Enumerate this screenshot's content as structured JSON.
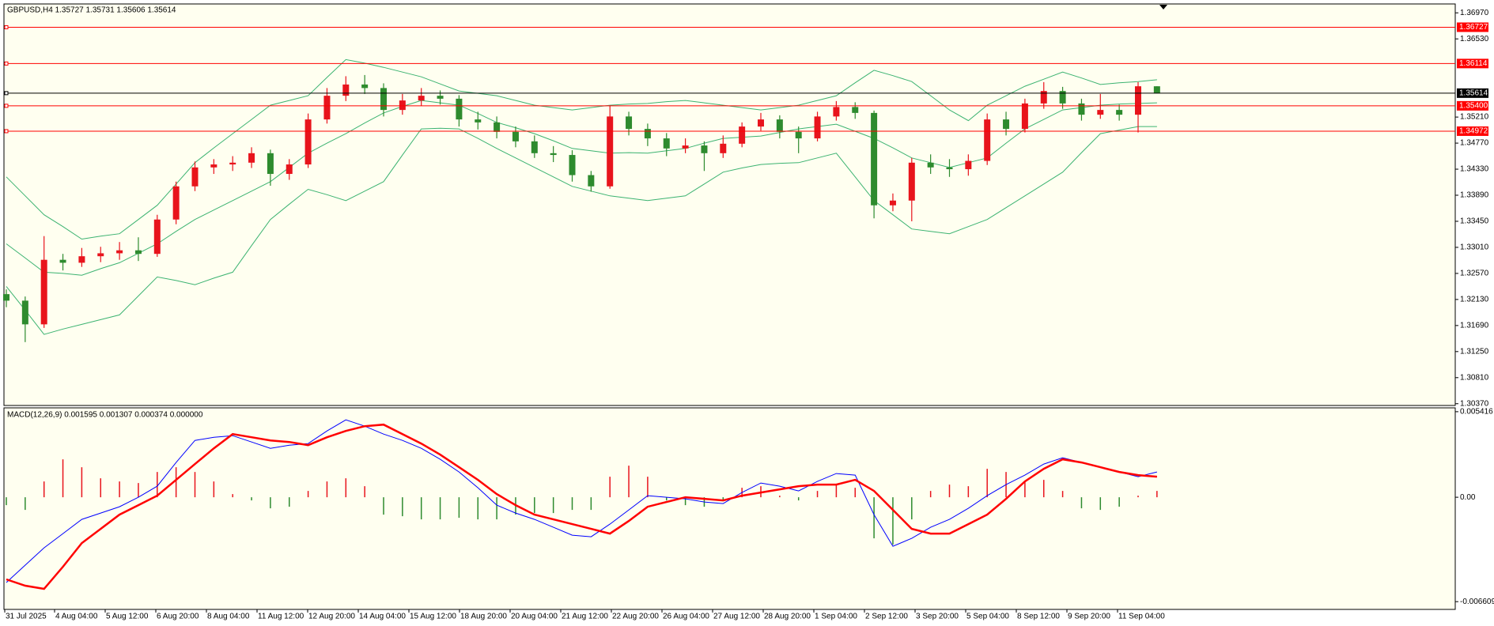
{
  "chart_data": [
    {
      "type": "candlestick",
      "title": "GBPUSD,H4  1.35727 1.35731 1.35606 1.35614",
      "up_color": "#e8141c",
      "down_color": "#2e8b2e",
      "open": [
        1.3222,
        1.3211,
        1.3171,
        1.328,
        1.3275,
        1.3286,
        1.3291,
        1.3296,
        1.329,
        1.3348,
        1.3404,
        1.3436,
        1.3441,
        1.3444,
        1.346,
        1.3425,
        1.3441,
        1.3517,
        1.3557,
        1.3576,
        1.357,
        1.3533,
        1.3549,
        1.3557,
        1.3552,
        1.3517,
        1.3512,
        1.3496,
        1.348,
        1.346,
        1.3457,
        1.3423,
        1.3404,
        1.3522,
        1.3501,
        1.3485,
        1.3468,
        1.3473,
        1.346,
        1.3476,
        1.3505,
        1.3517,
        1.3496,
        1.3485,
        1.3522,
        1.3538,
        1.3528,
        1.3372,
        1.338,
        1.3444,
        1.3436,
        1.3433,
        1.3447,
        1.3517,
        1.3501,
        1.3544,
        1.3565,
        1.3544,
        1.3525,
        1.3533,
        1.3525,
        1.3573
      ],
      "high": [
        1.323,
        1.3218,
        1.332,
        1.329,
        1.33,
        1.3302,
        1.331,
        1.3318,
        1.3356,
        1.3412,
        1.3446,
        1.345,
        1.3455,
        1.347,
        1.3466,
        1.345,
        1.3527,
        1.357,
        1.359,
        1.3592,
        1.3578,
        1.356,
        1.357,
        1.3566,
        1.3558,
        1.353,
        1.3522,
        1.3505,
        1.349,
        1.3472,
        1.3465,
        1.343,
        1.354,
        1.353,
        1.351,
        1.3494,
        1.3485,
        1.348,
        1.349,
        1.3512,
        1.3528,
        1.3524,
        1.3505,
        1.353,
        1.3548,
        1.3546,
        1.3532,
        1.3392,
        1.3452,
        1.3458,
        1.345,
        1.3458,
        1.3527,
        1.353,
        1.3552,
        1.358,
        1.3572,
        1.3552,
        1.356,
        1.3542,
        1.358,
        1.3573
      ],
      "low": [
        1.32,
        1.3141,
        1.3165,
        1.3262,
        1.3268,
        1.3276,
        1.328,
        1.3278,
        1.3285,
        1.334,
        1.3396,
        1.3425,
        1.343,
        1.3435,
        1.3405,
        1.3415,
        1.3435,
        1.351,
        1.3548,
        1.356,
        1.3522,
        1.3525,
        1.354,
        1.3542,
        1.3505,
        1.35,
        1.3485,
        1.347,
        1.3452,
        1.3445,
        1.3412,
        1.3395,
        1.34,
        1.349,
        1.3472,
        1.3455,
        1.346,
        1.343,
        1.3452,
        1.347,
        1.3498,
        1.3485,
        1.346,
        1.348,
        1.3515,
        1.3518,
        1.335,
        1.3362,
        1.3345,
        1.3425,
        1.342,
        1.3422,
        1.344,
        1.349,
        1.3495,
        1.3535,
        1.3535,
        1.3515,
        1.3518,
        1.3515,
        1.3495,
        1.3561
      ],
      "close": [
        1.3211,
        1.3171,
        1.328,
        1.3275,
        1.3286,
        1.3291,
        1.3296,
        1.329,
        1.3348,
        1.3404,
        1.3436,
        1.3441,
        1.3444,
        1.346,
        1.3425,
        1.3441,
        1.3517,
        1.3557,
        1.3576,
        1.357,
        1.3533,
        1.3549,
        1.3557,
        1.3552,
        1.3517,
        1.3512,
        1.3496,
        1.348,
        1.346,
        1.3457,
        1.3423,
        1.3404,
        1.3522,
        1.3501,
        1.3485,
        1.3468,
        1.3473,
        1.346,
        1.3476,
        1.3505,
        1.3517,
        1.3496,
        1.3485,
        1.3522,
        1.3538,
        1.3528,
        1.3372,
        1.338,
        1.3444,
        1.3436,
        1.3433,
        1.3447,
        1.3517,
        1.3501,
        1.3544,
        1.3565,
        1.3544,
        1.3525,
        1.3533,
        1.3525,
        1.3573,
        1.3561
      ],
      "band_color": "#3cb371",
      "bands": {
        "upper": [
          1.342,
          1.3388,
          1.3356,
          1.3336,
          1.3315,
          1.332,
          1.3324,
          1.3348,
          1.3372,
          1.3408,
          1.3444,
          1.3469,
          1.3493,
          1.3517,
          1.3541,
          1.3549,
          1.3557,
          1.3588,
          1.3618,
          1.3612,
          1.3605,
          1.3597,
          1.3589,
          1.3577,
          1.3565,
          1.3561,
          1.3557,
          1.3549,
          1.3541,
          1.3537,
          1.3533,
          1.3537,
          1.3541,
          1.3543,
          1.3544,
          1.3547,
          1.3549,
          1.3545,
          1.3541,
          1.3537,
          1.3533,
          1.3537,
          1.3541,
          1.3549,
          1.3557,
          1.3579,
          1.36,
          1.3591,
          1.3581,
          1.3557,
          1.3533,
          1.3515,
          1.3541,
          1.3557,
          1.3573,
          1.3585,
          1.3597,
          1.3587,
          1.3576,
          1.3579,
          1.3581,
          1.3584
        ],
        "middle": [
          1.3307,
          1.3283,
          1.3259,
          1.3257,
          1.3254,
          1.3265,
          1.3275,
          1.3291,
          1.3307,
          1.3328,
          1.3348,
          1.3364,
          1.338,
          1.3396,
          1.3412,
          1.3436,
          1.346,
          1.3477,
          1.3493,
          1.3511,
          1.3528,
          1.3539,
          1.3549,
          1.3545,
          1.3541,
          1.3527,
          1.3512,
          1.3503,
          1.3493,
          1.3481,
          1.3468,
          1.3464,
          1.346,
          1.3461,
          1.346,
          1.3464,
          1.3468,
          1.3477,
          1.3485,
          1.3487,
          1.3489,
          1.3495,
          1.3501,
          1.3505,
          1.3509,
          1.3497,
          1.3485,
          1.3469,
          1.3452,
          1.3444,
          1.3436,
          1.3444,
          1.3452,
          1.3477,
          1.3501,
          1.3517,
          1.3533,
          1.3537,
          1.3541,
          1.3543,
          1.3544,
          1.3545
        ],
        "lower": [
          1.3235,
          1.3195,
          1.3154,
          1.3163,
          1.3171,
          1.3179,
          1.3187,
          1.3219,
          1.3251,
          1.3245,
          1.3238,
          1.3249,
          1.3259,
          1.3304,
          1.3348,
          1.3374,
          1.3399,
          1.339,
          1.338,
          1.3396,
          1.3412,
          1.3457,
          1.3501,
          1.3502,
          1.3501,
          1.3485,
          1.3468,
          1.3452,
          1.3436,
          1.342,
          1.3404,
          1.3396,
          1.3388,
          1.3384,
          1.338,
          1.3384,
          1.3388,
          1.3408,
          1.3428,
          1.3435,
          1.3441,
          1.3443,
          1.3444,
          1.3452,
          1.346,
          1.342,
          1.338,
          1.3356,
          1.3332,
          1.3328,
          1.3324,
          1.3336,
          1.3348,
          1.3368,
          1.3388,
          1.3408,
          1.3428,
          1.3461,
          1.3493,
          1.3499,
          1.3505,
          1.3505
        ]
      },
      "ylim": [
        1.3034,
        1.3712
      ],
      "yticks": [
        {
          "value": 1.3697,
          "label": "1.36970"
        },
        {
          "value": 1.3653,
          "label": "1.36530"
        },
        {
          "value": 1.3521,
          "label": "1.35210"
        },
        {
          "value": 1.3477,
          "label": "1.34770"
        },
        {
          "value": 1.3433,
          "label": "1.34330"
        },
        {
          "value": 1.3389,
          "label": "1.33890"
        },
        {
          "value": 1.3345,
          "label": "1.33450"
        },
        {
          "value": 1.3301,
          "label": "1.33010"
        },
        {
          "value": 1.3257,
          "label": "1.32570"
        },
        {
          "value": 1.3213,
          "label": "1.32130"
        },
        {
          "value": 1.3169,
          "label": "1.31690"
        },
        {
          "value": 1.3125,
          "label": "1.31250"
        },
        {
          "value": 1.3081,
          "label": "1.30810"
        },
        {
          "value": 1.3037,
          "label": "1.30370"
        }
      ],
      "price_line_color": "#ff0000",
      "price_lines": [
        {
          "value": 1.36727,
          "label": "1.36727"
        },
        {
          "value": 1.36114,
          "label": "1.36114"
        },
        {
          "value": 1.354,
          "label": "1.35400"
        },
        {
          "value": 1.34972,
          "label": "1.34972"
        }
      ],
      "current_price_color": "#000000",
      "current_price": {
        "value": 1.35614,
        "label": "1.35614"
      }
    },
    {
      "type": "macd",
      "title": "MACD(12,26,9) 0.001595 0.001307 0.000374 0.000000",
      "hist_up_color": "#e8141c",
      "hist_down_color": "#2e8b2e",
      "macd_color": "#0000ff",
      "signal_color": "#ff0000",
      "histogram": [
        -0.0005,
        -0.0008,
        0.001,
        0.0024,
        0.0019,
        0.0012,
        0.001,
        0.0009,
        0.0016,
        0.0019,
        0.0016,
        0.001,
        0.0002,
        -0.0002,
        -0.0007,
        -0.0006,
        0.0004,
        0.001,
        0.0012,
        0.0007,
        -0.0011,
        -0.0012,
        -0.0014,
        -0.0014,
        -0.0013,
        -0.0014,
        -0.0014,
        -0.0011,
        -0.001,
        -0.001,
        -0.0008,
        -0.0008,
        0.0013,
        0.002,
        0.0013,
        -0.0002,
        -0.0005,
        -0.0006,
        -0.0002,
        0.0006,
        0.0007,
        0.0001,
        -0.0002,
        0.0004,
        0.0008,
        0.0006,
        -0.0026,
        -0.003,
        -0.0014,
        0.0004,
        0.0008,
        0.0007,
        0.0018,
        0.0016,
        0.001,
        0.0011,
        0.0004,
        -0.0007,
        -0.0008,
        -0.0006,
        0.0001,
        0.0004
      ],
      "macd": [
        -0.0054,
        -0.0043,
        -0.0032,
        -0.0023,
        -0.0014,
        -0.001,
        -0.0006,
        0.0,
        0.0007,
        0.0022,
        0.0036,
        0.0038,
        0.0039,
        0.0035,
        0.0031,
        0.0033,
        0.0034,
        0.0042,
        0.0049,
        0.0045,
        0.004,
        0.0036,
        0.0031,
        0.0024,
        0.0016,
        0.0006,
        -0.0005,
        -0.001,
        -0.0014,
        -0.0019,
        -0.0024,
        -0.0025,
        -0.0017,
        -0.0008,
        0.0001,
        0.0,
        -0.0001,
        -0.0003,
        -0.0004,
        0.0003,
        0.0009,
        0.0007,
        0.0004,
        0.001,
        0.0015,
        0.0014,
        -0.0011,
        -0.0031,
        -0.0026,
        -0.0019,
        -0.0014,
        -0.0007,
        0.0001,
        0.0008,
        0.0014,
        0.0021,
        0.0025,
        0.0022,
        0.0019,
        0.0016,
        0.0013,
        0.0016
      ],
      "signal": [
        -0.0052,
        -0.0056,
        -0.0058,
        -0.0044,
        -0.0029,
        -0.002,
        -0.0011,
        -0.0005,
        0.0001,
        0.0011,
        0.0021,
        0.0031,
        0.004,
        0.0038,
        0.0036,
        0.0035,
        0.0033,
        0.0038,
        0.0042,
        0.0045,
        0.0046,
        0.004,
        0.0034,
        0.0027,
        0.0019,
        0.0011,
        0.0002,
        -0.0005,
        -0.0011,
        -0.0014,
        -0.0017,
        -0.002,
        -0.0023,
        -0.0015,
        -0.0006,
        -0.0003,
        0.0,
        -0.0001,
        -0.0002,
        0.0001,
        0.0003,
        0.0005,
        0.0007,
        0.0008,
        0.0008,
        0.0011,
        0.0004,
        -0.0008,
        -0.002,
        -0.0023,
        -0.0023,
        -0.0017,
        -0.0011,
        -0.0001,
        0.001,
        0.0018,
        0.0024,
        0.0022,
        0.0019,
        0.0016,
        0.0014,
        0.0013
      ],
      "ylim": [
        -0.0071,
        0.00566
      ],
      "yticks": [
        0.005416,
        {
          "value": 0,
          "label": "0.00"
        },
        -0.006609
      ],
      "x_labels": [
        "31 Jul 2025",
        "4 Aug 04:00",
        "5 Aug 12:00",
        "6 Aug 20:00",
        "8 Aug 04:00",
        "11 Aug 12:00",
        "12 Aug 20:00",
        "14 Aug 04:00",
        "15 Aug 12:00",
        "18 Aug 20:00",
        "20 Aug 04:00",
        "21 Aug 12:00",
        "22 Aug 20:00",
        "26 Aug 04:00",
        "27 Aug 12:00",
        "28 Aug 20:00",
        "1 Sep 04:00",
        "2 Sep 12:00",
        "3 Sep 20:00",
        "5 Sep 04:00",
        "8 Sep 12:00",
        "9 Sep 20:00",
        "11 Sep 04:00"
      ]
    }
  ]
}
